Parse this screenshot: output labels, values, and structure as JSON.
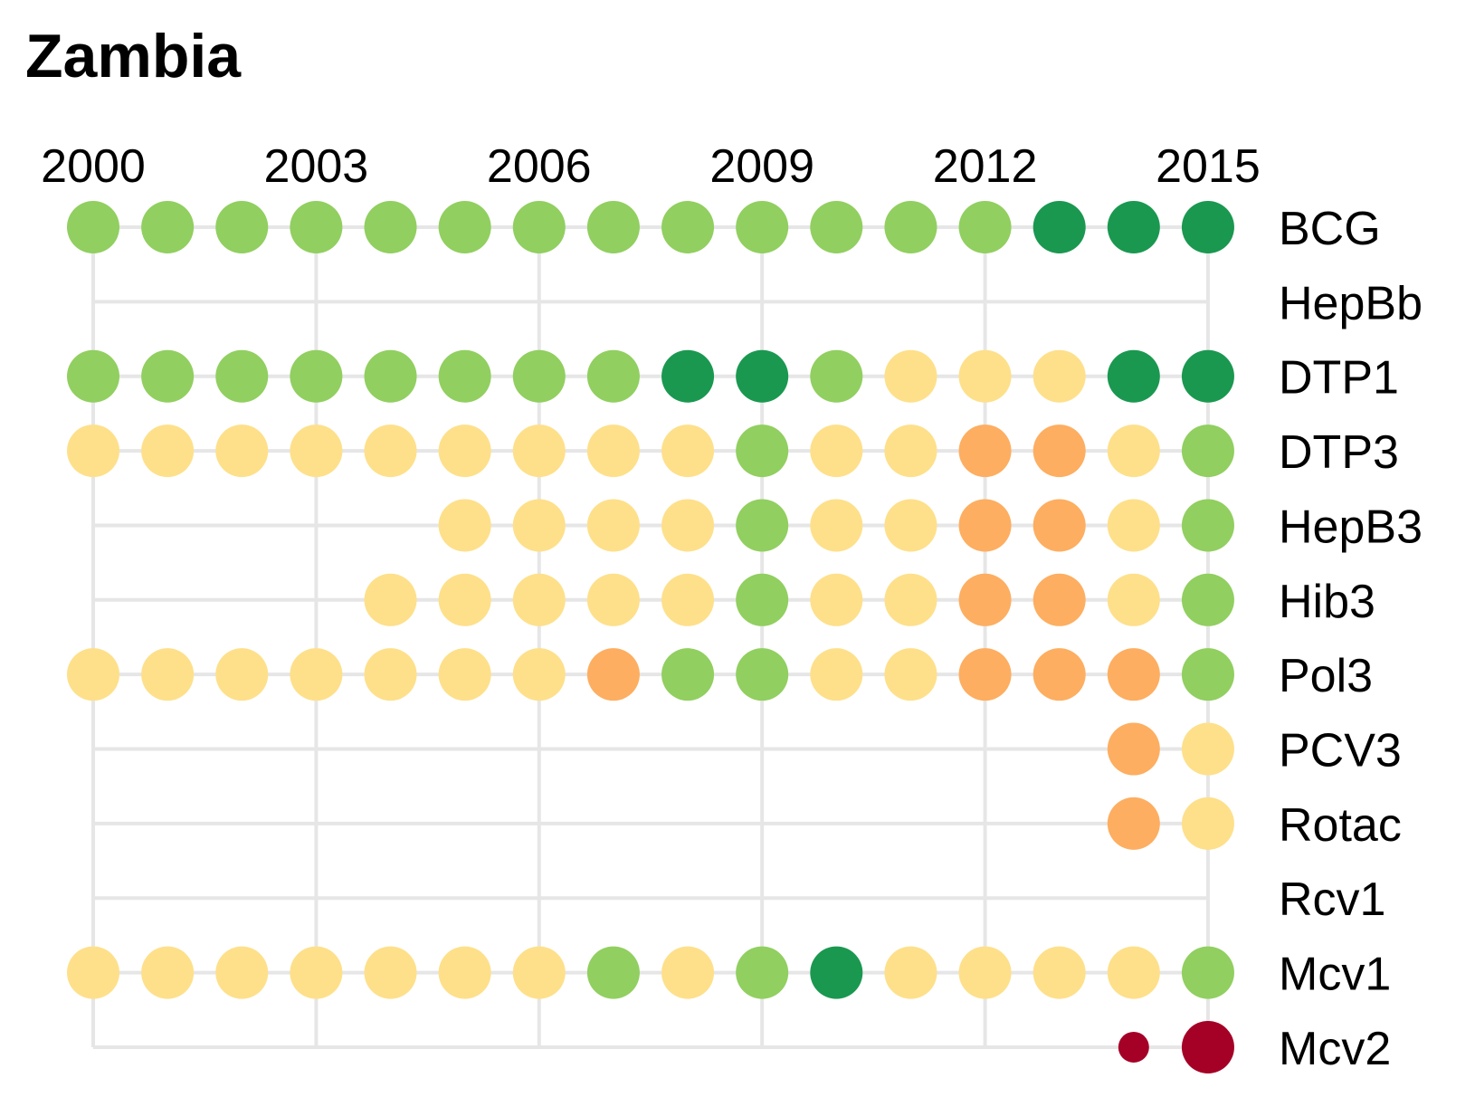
{
  "chart_data": {
    "type": "dot-matrix",
    "title": "Zambia",
    "x_ticks": [
      "2000",
      "2003",
      "2006",
      "2009",
      "2012",
      "2015"
    ],
    "years": [
      2000,
      2001,
      2002,
      2003,
      2004,
      2005,
      2006,
      2007,
      2008,
      2009,
      2010,
      2011,
      2012,
      2013,
      2014,
      2015
    ],
    "xlim": [
      2000,
      2015
    ],
    "grid": true,
    "colors": {
      "dark_green": "#1a9850",
      "light_green": "#91cf60",
      "yellow": "#fee08b",
      "orange": "#fdae61",
      "red": "#a50026"
    },
    "series": [
      {
        "name": "BCG",
        "values": [
          "light_green",
          "light_green",
          "light_green",
          "light_green",
          "light_green",
          "light_green",
          "light_green",
          "light_green",
          "light_green",
          "light_green",
          "light_green",
          "light_green",
          "light_green",
          "dark_green",
          "dark_green",
          "dark_green"
        ]
      },
      {
        "name": "HepBb",
        "values": [
          null,
          null,
          null,
          null,
          null,
          null,
          null,
          null,
          null,
          null,
          null,
          null,
          null,
          null,
          null,
          null
        ]
      },
      {
        "name": "DTP1",
        "values": [
          "light_green",
          "light_green",
          "light_green",
          "light_green",
          "light_green",
          "light_green",
          "light_green",
          "light_green",
          "dark_green",
          "dark_green",
          "light_green",
          "yellow",
          "yellow",
          "yellow",
          "dark_green",
          "dark_green"
        ]
      },
      {
        "name": "DTP3",
        "values": [
          "yellow",
          "yellow",
          "yellow",
          "yellow",
          "yellow",
          "yellow",
          "yellow",
          "yellow",
          "yellow",
          "light_green",
          "yellow",
          "yellow",
          "orange",
          "orange",
          "yellow",
          "light_green"
        ]
      },
      {
        "name": "HepB3",
        "values": [
          null,
          null,
          null,
          null,
          null,
          "yellow",
          "yellow",
          "yellow",
          "yellow",
          "light_green",
          "yellow",
          "yellow",
          "orange",
          "orange",
          "yellow",
          "light_green"
        ]
      },
      {
        "name": "Hib3",
        "values": [
          null,
          null,
          null,
          null,
          "yellow",
          "yellow",
          "yellow",
          "yellow",
          "yellow",
          "light_green",
          "yellow",
          "yellow",
          "orange",
          "orange",
          "yellow",
          "light_green"
        ]
      },
      {
        "name": "Pol3",
        "values": [
          "yellow",
          "yellow",
          "yellow",
          "yellow",
          "yellow",
          "yellow",
          "yellow",
          "orange",
          "light_green",
          "light_green",
          "yellow",
          "yellow",
          "orange",
          "orange",
          "orange",
          "light_green"
        ]
      },
      {
        "name": "PCV3",
        "values": [
          null,
          null,
          null,
          null,
          null,
          null,
          null,
          null,
          null,
          null,
          null,
          null,
          null,
          null,
          "orange",
          "yellow"
        ]
      },
      {
        "name": "Rotac",
        "values": [
          null,
          null,
          null,
          null,
          null,
          null,
          null,
          null,
          null,
          null,
          null,
          null,
          null,
          null,
          "orange",
          "yellow"
        ]
      },
      {
        "name": "Rcv1",
        "values": [
          null,
          null,
          null,
          null,
          null,
          null,
          null,
          null,
          null,
          null,
          null,
          null,
          null,
          null,
          null,
          null
        ]
      },
      {
        "name": "Mcv1",
        "values": [
          "yellow",
          "yellow",
          "yellow",
          "yellow",
          "yellow",
          "yellow",
          "yellow",
          "light_green",
          "yellow",
          "light_green",
          "dark_green",
          "yellow",
          "yellow",
          "yellow",
          "yellow",
          "light_green"
        ]
      },
      {
        "name": "Mcv2",
        "values": [
          null,
          null,
          null,
          null,
          null,
          null,
          null,
          null,
          null,
          null,
          null,
          null,
          null,
          null,
          "red",
          "red"
        ]
      }
    ],
    "small_points": [
      {
        "series": "Mcv2",
        "year": 2014
      }
    ]
  }
}
